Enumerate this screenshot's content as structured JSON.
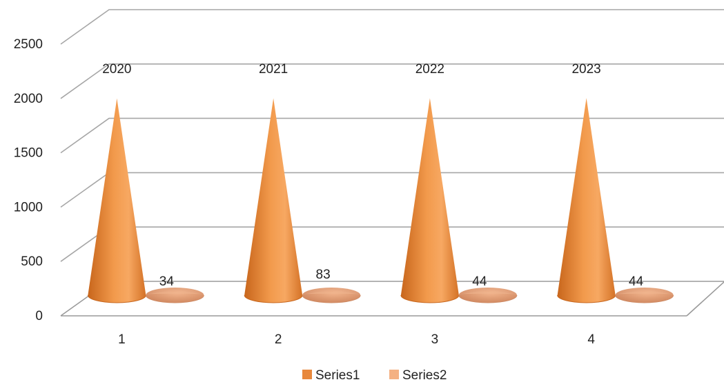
{
  "chart_data": {
    "type": "bar",
    "style": "3d-cone",
    "categories": [
      "1",
      "2",
      "3",
      "4"
    ],
    "series": [
      {
        "name": "Series1",
        "values": [
          2020,
          2021,
          2022,
          2023
        ],
        "data_labels": [
          "2020",
          "2021",
          "2022",
          "2023"
        ],
        "color": "#E8883C"
      },
      {
        "name": "Series2",
        "values": [
          34,
          83,
          44,
          44
        ],
        "data_labels": [
          "34",
          "83",
          "44",
          "44"
        ],
        "color": "#F4B183"
      }
    ],
    "y_ticks": [
      "0",
      "500",
      "1000",
      "1500",
      "2000",
      "2500"
    ],
    "ylim": [
      0,
      2500
    ],
    "grid": true,
    "legend": "bottom",
    "title": "",
    "xlabel": "",
    "ylabel": ""
  }
}
